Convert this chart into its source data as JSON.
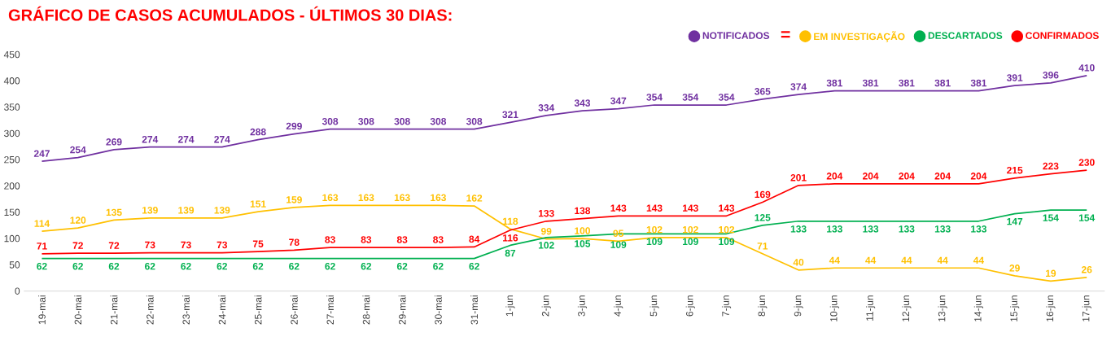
{
  "chart_data": {
    "type": "line",
    "title": "GRÁFICO DE CASOS ACUMULADOS - ÚLTIMOS 30 DIAS:",
    "annotations": [
      "="
    ],
    "categories": [
      "19-mai",
      "20-mai",
      "21-mai",
      "22-mai",
      "23-mai",
      "24-mai",
      "25-mai",
      "26-mai",
      "27-mai",
      "28-mai",
      "29-mai",
      "30-mai",
      "31-mai",
      "1-jun",
      "2-jun",
      "3-jun",
      "4-jun",
      "5-jun",
      "6-jun",
      "7-jun",
      "8-jun",
      "9-jun",
      "10-jun",
      "11-jun",
      "12-jun",
      "13-jun",
      "14-jun",
      "15-jun",
      "16-jun",
      "17-jun"
    ],
    "series": [
      {
        "name": "NOTIFICADOS",
        "color": "#7030a0",
        "values": [
          247,
          254,
          269,
          274,
          274,
          274,
          288,
          299,
          308,
          308,
          308,
          308,
          308,
          321,
          334,
          343,
          347,
          354,
          354,
          354,
          365,
          374,
          381,
          381,
          381,
          381,
          381,
          391,
          396,
          410
        ]
      },
      {
        "name": "EM INVESTIGAÇÃO",
        "color": "#ffc000",
        "values": [
          114,
          120,
          135,
          139,
          139,
          139,
          151,
          159,
          163,
          163,
          163,
          163,
          162,
          118,
          99,
          100,
          95,
          102,
          102,
          102,
          71,
          40,
          44,
          44,
          44,
          44,
          44,
          29,
          19,
          26
        ]
      },
      {
        "name": "DESCARTADOS",
        "color": "#00b050",
        "values": [
          62,
          62,
          62,
          62,
          62,
          62,
          62,
          62,
          62,
          62,
          62,
          62,
          62,
          87,
          102,
          105,
          109,
          109,
          109,
          109,
          125,
          133,
          133,
          133,
          133,
          133,
          133,
          147,
          154,
          154
        ]
      },
      {
        "name": "CONFIRMADOS",
        "color": "#ff0000",
        "values": [
          71,
          72,
          72,
          73,
          73,
          73,
          75,
          78,
          83,
          83,
          83,
          83,
          84,
          116,
          133,
          138,
          143,
          143,
          143,
          143,
          169,
          201,
          204,
          204,
          204,
          204,
          204,
          215,
          223,
          230
        ]
      }
    ],
    "ylim": [
      0,
      450
    ],
    "yticks": [
      0,
      50,
      100,
      150,
      200,
      250,
      300,
      350,
      400,
      450
    ],
    "data_labels": true,
    "legend": "top right",
    "grid": false,
    "marker": "none",
    "line_style": "solid"
  }
}
